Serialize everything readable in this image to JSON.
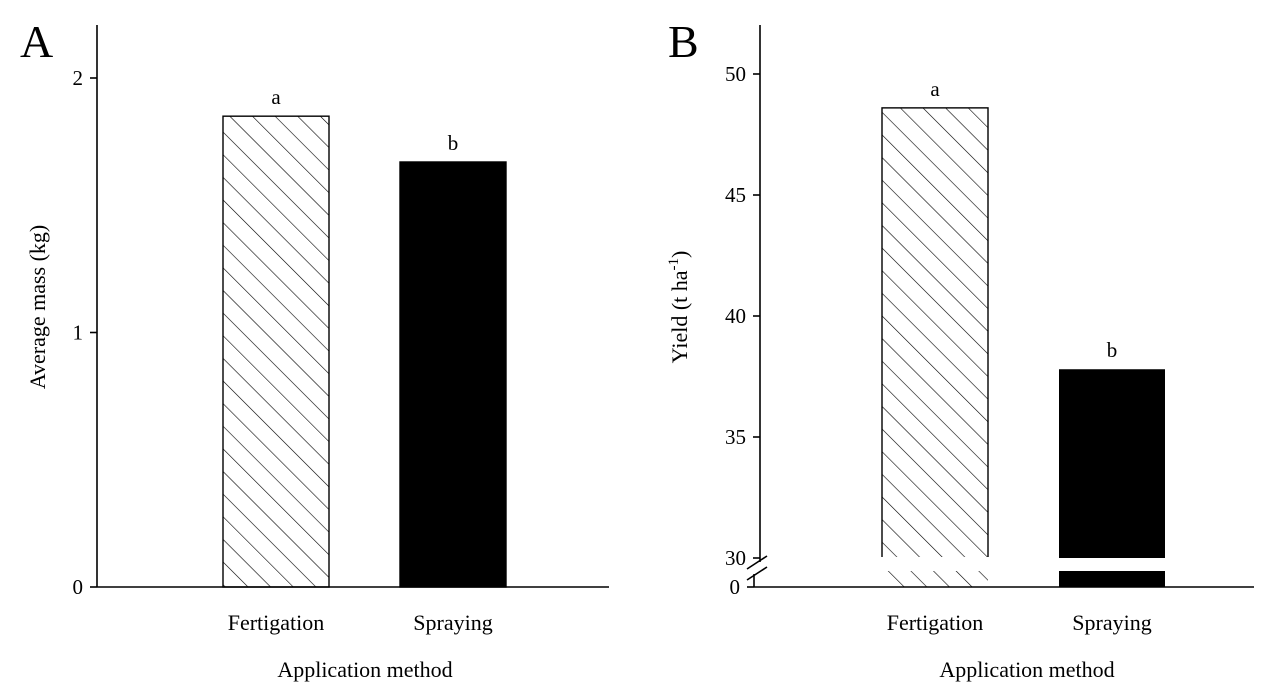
{
  "chart_data": [
    {
      "panel": "A",
      "type": "bar",
      "categories": [
        "Fertigation",
        "Spraying"
      ],
      "values": [
        1.85,
        1.67
      ],
      "significance": [
        "a",
        "b"
      ],
      "xlabel": "Application method",
      "ylabel": "Average mass (kg)",
      "ylim": [
        0,
        2.2
      ],
      "yticks": [
        0,
        1,
        2
      ],
      "grid": false,
      "bar_fills": [
        "hatched",
        "solid"
      ],
      "colors": {
        "fill_solid": "#000000",
        "hatch": "#000000",
        "background": "#ffffff"
      }
    },
    {
      "panel": "B",
      "type": "bar",
      "categories": [
        "Fertigation",
        "Spraying"
      ],
      "values": [
        48.6,
        37.8
      ],
      "significance": [
        "a",
        "b"
      ],
      "xlabel": "Application method",
      "ylabel": "Yield (t ha",
      "ylabel_superscript": "-1",
      "ylabel_suffix": ")",
      "ylim": [
        30,
        52
      ],
      "axis_break": true,
      "yticks": [
        30,
        35,
        40,
        45,
        50
      ],
      "ytick_below_break": 0,
      "grid": false,
      "bar_fills": [
        "hatched",
        "solid"
      ],
      "colors": {
        "fill_solid": "#000000",
        "hatch": "#000000",
        "background": "#ffffff"
      }
    }
  ]
}
